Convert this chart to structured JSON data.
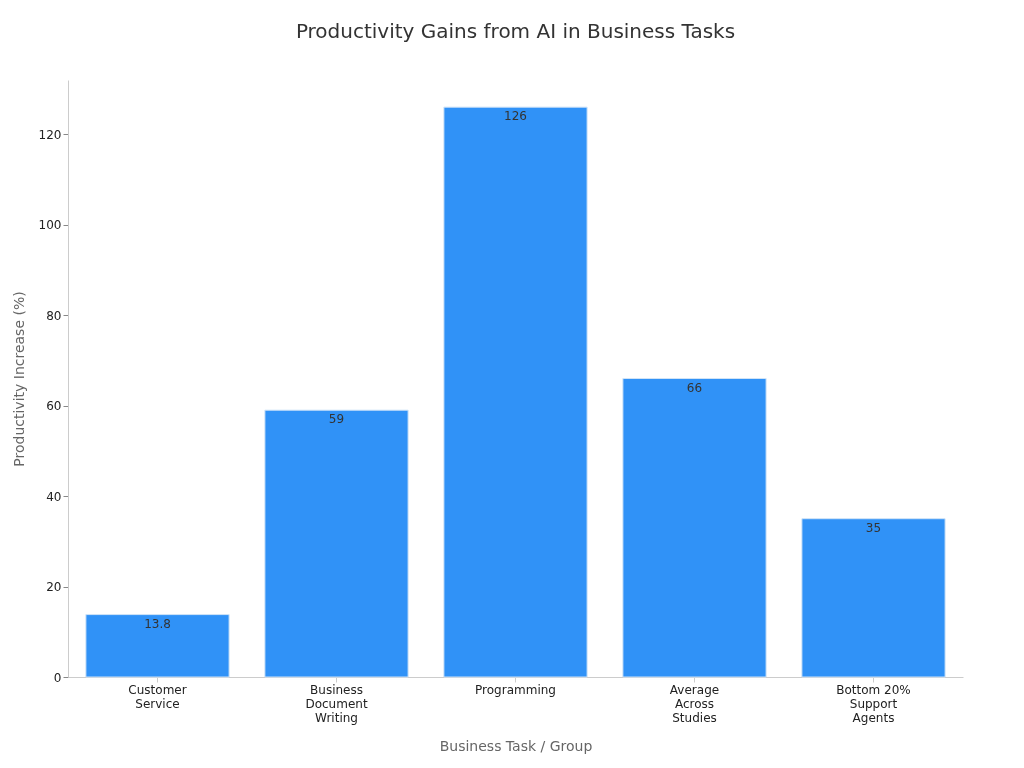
{
  "chart_data": {
    "type": "bar",
    "title": "Productivity Gains from AI in Business Tasks",
    "xlabel": "Business Task / Group",
    "ylabel": "Productivity Increase (%)",
    "categories": [
      "Customer Service",
      "Business Document Writing",
      "Programming",
      "Average Across Studies",
      "Bottom 20% Support Agents"
    ],
    "values": [
      13.8,
      59,
      126,
      66,
      35
    ],
    "color": "#3092f7",
    "ylim": [
      0,
      132
    ],
    "yticks": [
      0,
      20,
      40,
      60,
      80,
      100,
      120
    ],
    "grid": false,
    "data_labels": true
  }
}
